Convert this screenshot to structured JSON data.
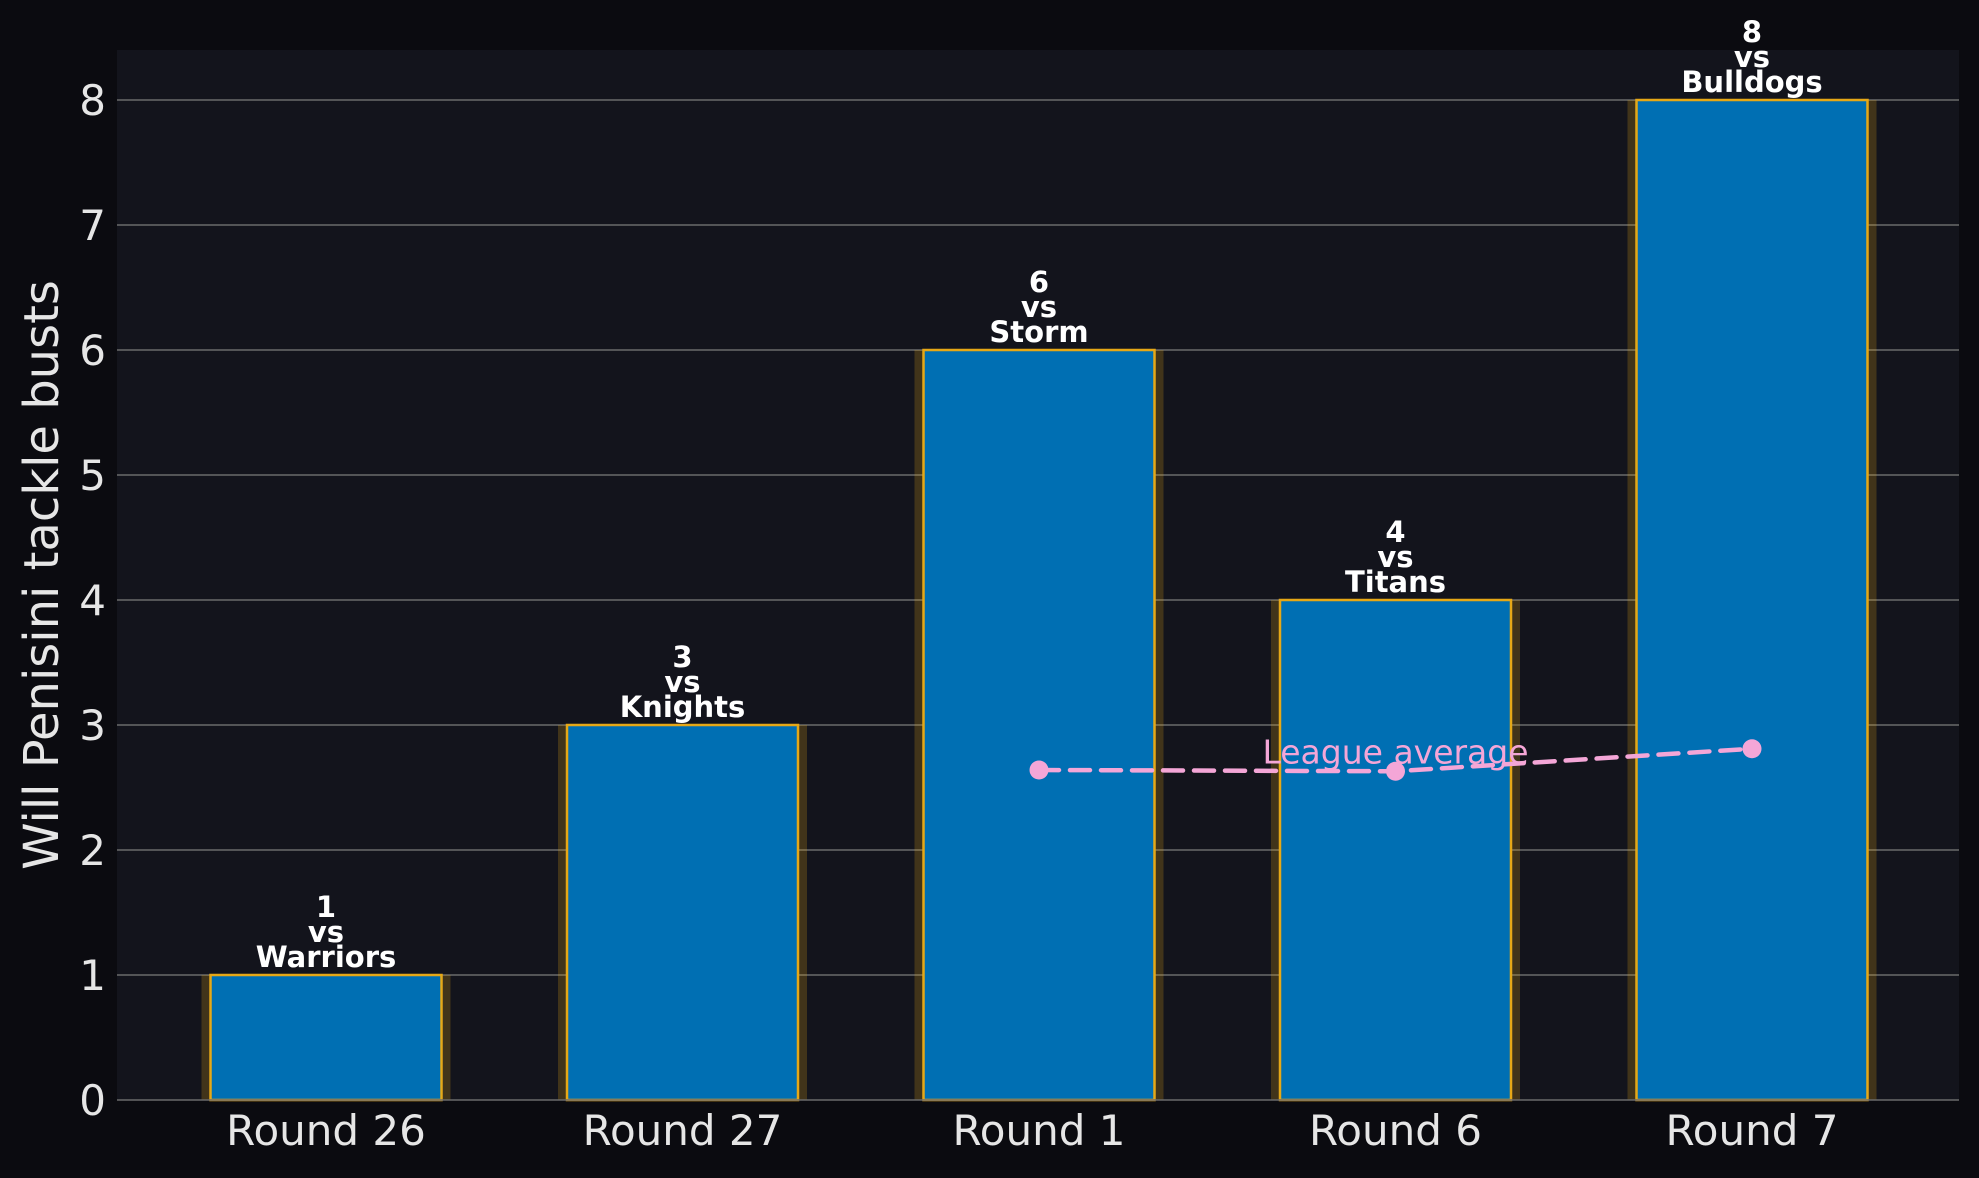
{
  "chart_data": {
    "type": "bar",
    "title": "",
    "xlabel": "",
    "ylabel": "Will Penisini tackle busts",
    "categories": [
      "Round 26",
      "Round 27",
      "Round 1",
      "Round 6",
      "Round 7"
    ],
    "values": [
      1,
      3,
      6,
      4,
      8
    ],
    "opponents": [
      "Warriors",
      "Knights",
      "Storm",
      "Titans",
      "Bulldogs"
    ],
    "vs_word": "vs",
    "ylim": [
      0,
      8.4
    ],
    "yticks": [
      0,
      1,
      2,
      3,
      4,
      5,
      6,
      7,
      8
    ],
    "grid": true,
    "league_average": {
      "name": "League average",
      "x_categories": [
        "Round 1",
        "Round 6",
        "Round 7"
      ],
      "values": [
        2.64,
        2.63,
        2.81
      ],
      "color": "#f4a6d7",
      "style": "dashed"
    },
    "colors": {
      "bar_fill": "#006fb3",
      "bar_edge": "#e6a817",
      "background": "#0b0b10",
      "plot_background": "#13141c",
      "grid": "#6b6b6b",
      "text": "#e6e6e6"
    }
  }
}
